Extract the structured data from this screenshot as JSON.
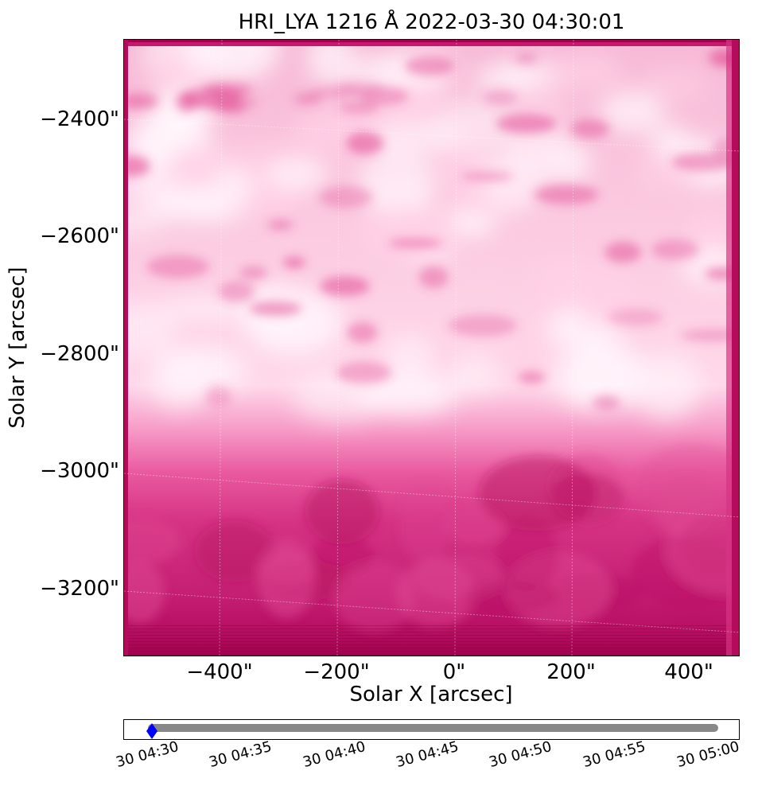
{
  "figure": {
    "title": "HRI_LYA 1216 Å 2022-03-30 04:30:01",
    "xlabel": "Solar X [arcsec]",
    "ylabel": "Solar Y [arcsec]",
    "x_ticks": [
      "−400\"",
      "−200\"",
      "0\"",
      "200\"",
      "400\""
    ],
    "y_ticks": [
      "−2400\"",
      "−2600\"",
      "−2800\"",
      "−3000\"",
      "−3200\""
    ],
    "colormap": {
      "dark": "#a0004c",
      "mid": "#e0438f",
      "light": "#ffd0e6",
      "brightest": "#fff4fa"
    },
    "timeline": {
      "ticks": [
        "30 04:30",
        "30 04:35",
        "30 04:40",
        "30 04:45",
        "30 04:50",
        "30 04:55",
        "30 05:00"
      ],
      "bar_color": "#888888",
      "marker_color": "#0000ff"
    }
  }
}
